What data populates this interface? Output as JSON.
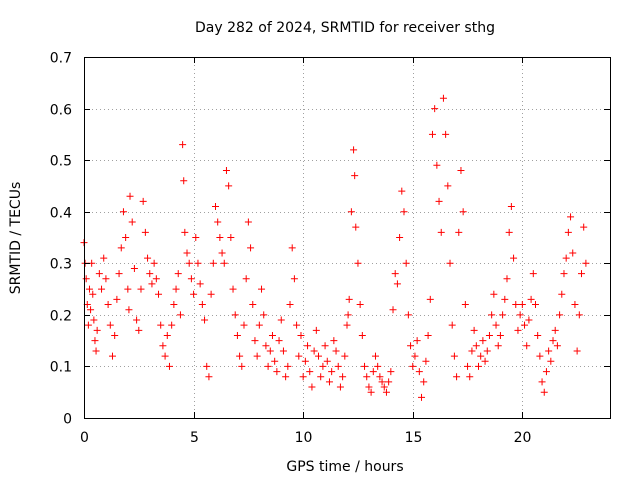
{
  "chart_data": {
    "type": "scatter",
    "title": "Day 282 of 2024, SRMTID for receiver sthg",
    "xlabel": "GPS time / hours",
    "ylabel": "SRMTID / TECUs",
    "xlim": [
      0,
      24
    ],
    "ylim": [
      0,
      0.7
    ],
    "xticks": [
      0,
      5,
      10,
      15,
      20
    ],
    "xtick_labels": [
      "0",
      "5",
      "10",
      "15",
      "20"
    ],
    "yticks": [
      0,
      0.1,
      0.2,
      0.3,
      0.4,
      0.5,
      0.6,
      0.7
    ],
    "ytick_labels": [
      "0",
      "0.1",
      "0.2",
      "0.3",
      "0.4",
      "0.5",
      "0.6",
      "0.7"
    ],
    "grid": true,
    "marker": "+",
    "series": [
      {
        "name": "SRMTID",
        "color": "#ff0000",
        "points": [
          [
            0.0,
            0.34
          ],
          [
            0.05,
            0.3
          ],
          [
            0.1,
            0.27
          ],
          [
            0.15,
            0.22
          ],
          [
            0.2,
            0.18
          ],
          [
            0.25,
            0.25
          ],
          [
            0.3,
            0.21
          ],
          [
            0.35,
            0.3
          ],
          [
            0.4,
            0.24
          ],
          [
            0.45,
            0.19
          ],
          [
            0.5,
            0.15
          ],
          [
            0.55,
            0.13
          ],
          [
            0.6,
            0.17
          ],
          [
            0.7,
            0.28
          ],
          [
            0.8,
            0.25
          ],
          [
            0.9,
            0.31
          ],
          [
            1.0,
            0.27
          ],
          [
            1.1,
            0.22
          ],
          [
            1.2,
            0.18
          ],
          [
            1.3,
            0.12
          ],
          [
            1.4,
            0.16
          ],
          [
            1.5,
            0.23
          ],
          [
            1.6,
            0.28
          ],
          [
            1.7,
            0.33
          ],
          [
            1.8,
            0.4
          ],
          [
            1.9,
            0.35
          ],
          [
            2.0,
            0.25
          ],
          [
            2.05,
            0.21
          ],
          [
            2.1,
            0.43
          ],
          [
            2.2,
            0.38
          ],
          [
            2.3,
            0.29
          ],
          [
            2.4,
            0.19
          ],
          [
            2.5,
            0.17
          ],
          [
            2.6,
            0.25
          ],
          [
            2.7,
            0.42
          ],
          [
            2.8,
            0.36
          ],
          [
            2.9,
            0.31
          ],
          [
            3.0,
            0.28
          ],
          [
            3.1,
            0.26
          ],
          [
            3.2,
            0.3
          ],
          [
            3.3,
            0.27
          ],
          [
            3.4,
            0.24
          ],
          [
            3.5,
            0.18
          ],
          [
            3.6,
            0.14
          ],
          [
            3.7,
            0.12
          ],
          [
            3.8,
            0.16
          ],
          [
            3.9,
            0.1
          ],
          [
            4.0,
            0.18
          ],
          [
            4.1,
            0.22
          ],
          [
            4.2,
            0.25
          ],
          [
            4.3,
            0.28
          ],
          [
            4.4,
            0.2
          ],
          [
            4.5,
            0.53
          ],
          [
            4.55,
            0.46
          ],
          [
            4.6,
            0.36
          ],
          [
            4.7,
            0.32
          ],
          [
            4.8,
            0.3
          ],
          [
            4.9,
            0.27
          ],
          [
            5.0,
            0.24
          ],
          [
            5.1,
            0.35
          ],
          [
            5.2,
            0.3
          ],
          [
            5.3,
            0.26
          ],
          [
            5.4,
            0.22
          ],
          [
            5.5,
            0.19
          ],
          [
            5.6,
            0.1
          ],
          [
            5.7,
            0.08
          ],
          [
            5.8,
            0.24
          ],
          [
            5.9,
            0.3
          ],
          [
            6.0,
            0.41
          ],
          [
            6.1,
            0.38
          ],
          [
            6.2,
            0.35
          ],
          [
            6.3,
            0.32
          ],
          [
            6.4,
            0.3
          ],
          [
            6.5,
            0.48
          ],
          [
            6.6,
            0.45
          ],
          [
            6.7,
            0.35
          ],
          [
            6.8,
            0.25
          ],
          [
            6.9,
            0.2
          ],
          [
            7.0,
            0.16
          ],
          [
            7.1,
            0.12
          ],
          [
            7.2,
            0.1
          ],
          [
            7.3,
            0.18
          ],
          [
            7.4,
            0.27
          ],
          [
            7.5,
            0.38
          ],
          [
            7.6,
            0.33
          ],
          [
            7.7,
            0.22
          ],
          [
            7.8,
            0.15
          ],
          [
            7.9,
            0.12
          ],
          [
            8.0,
            0.18
          ],
          [
            8.1,
            0.25
          ],
          [
            8.2,
            0.2
          ],
          [
            8.3,
            0.14
          ],
          [
            8.4,
            0.1
          ],
          [
            8.5,
            0.13
          ],
          [
            8.6,
            0.16
          ],
          [
            8.7,
            0.11
          ],
          [
            8.8,
            0.09
          ],
          [
            8.9,
            0.15
          ],
          [
            9.0,
            0.19
          ],
          [
            9.1,
            0.13
          ],
          [
            9.2,
            0.08
          ],
          [
            9.3,
            0.1
          ],
          [
            9.4,
            0.22
          ],
          [
            9.5,
            0.33
          ],
          [
            9.6,
            0.27
          ],
          [
            9.7,
            0.18
          ],
          [
            9.8,
            0.12
          ],
          [
            9.9,
            0.16
          ],
          [
            10.0,
            0.08
          ],
          [
            10.1,
            0.11
          ],
          [
            10.2,
            0.14
          ],
          [
            10.3,
            0.09
          ],
          [
            10.4,
            0.06
          ],
          [
            10.5,
            0.13
          ],
          [
            10.6,
            0.17
          ],
          [
            10.7,
            0.12
          ],
          [
            10.8,
            0.08
          ],
          [
            10.9,
            0.1
          ],
          [
            11.0,
            0.14
          ],
          [
            11.1,
            0.11
          ],
          [
            11.2,
            0.07
          ],
          [
            11.3,
            0.09
          ],
          [
            11.4,
            0.15
          ],
          [
            11.5,
            0.13
          ],
          [
            11.6,
            0.1
          ],
          [
            11.7,
            0.06
          ],
          [
            11.8,
            0.08
          ],
          [
            11.9,
            0.12
          ],
          [
            12.0,
            0.18
          ],
          [
            12.05,
            0.2
          ],
          [
            12.1,
            0.23
          ],
          [
            12.2,
            0.4
          ],
          [
            12.3,
            0.52
          ],
          [
            12.35,
            0.47
          ],
          [
            12.4,
            0.37
          ],
          [
            12.5,
            0.3
          ],
          [
            12.6,
            0.22
          ],
          [
            12.7,
            0.16
          ],
          [
            12.8,
            0.1
          ],
          [
            12.9,
            0.08
          ],
          [
            13.0,
            0.06
          ],
          [
            13.1,
            0.05
          ],
          [
            13.2,
            0.09
          ],
          [
            13.3,
            0.12
          ],
          [
            13.4,
            0.1
          ],
          [
            13.5,
            0.08
          ],
          [
            13.6,
            0.07
          ],
          [
            13.7,
            0.06
          ],
          [
            13.8,
            0.05
          ],
          [
            13.9,
            0.07
          ],
          [
            14.0,
            0.09
          ],
          [
            14.1,
            0.21
          ],
          [
            14.2,
            0.28
          ],
          [
            14.3,
            0.26
          ],
          [
            14.4,
            0.35
          ],
          [
            14.5,
            0.44
          ],
          [
            14.6,
            0.4
          ],
          [
            14.7,
            0.3
          ],
          [
            14.8,
            0.2
          ],
          [
            14.9,
            0.14
          ],
          [
            15.0,
            0.1
          ],
          [
            15.1,
            0.12
          ],
          [
            15.2,
            0.15
          ],
          [
            15.3,
            0.09
          ],
          [
            15.4,
            0.04
          ],
          [
            15.5,
            0.07
          ],
          [
            15.6,
            0.11
          ],
          [
            15.7,
            0.16
          ],
          [
            15.8,
            0.23
          ],
          [
            15.9,
            0.55
          ],
          [
            16.0,
            0.6
          ],
          [
            16.1,
            0.49
          ],
          [
            16.2,
            0.42
          ],
          [
            16.3,
            0.36
          ],
          [
            16.4,
            0.62
          ],
          [
            16.5,
            0.55
          ],
          [
            16.6,
            0.45
          ],
          [
            16.7,
            0.3
          ],
          [
            16.8,
            0.18
          ],
          [
            16.9,
            0.12
          ],
          [
            17.0,
            0.08
          ],
          [
            17.1,
            0.36
          ],
          [
            17.2,
            0.48
          ],
          [
            17.3,
            0.4
          ],
          [
            17.4,
            0.22
          ],
          [
            17.5,
            0.1
          ],
          [
            17.6,
            0.08
          ],
          [
            17.7,
            0.13
          ],
          [
            17.8,
            0.17
          ],
          [
            17.9,
            0.14
          ],
          [
            18.0,
            0.1
          ],
          [
            18.1,
            0.12
          ],
          [
            18.2,
            0.15
          ],
          [
            18.3,
            0.11
          ],
          [
            18.4,
            0.13
          ],
          [
            18.5,
            0.16
          ],
          [
            18.6,
            0.2
          ],
          [
            18.7,
            0.24
          ],
          [
            18.8,
            0.18
          ],
          [
            18.9,
            0.14
          ],
          [
            19.0,
            0.16
          ],
          [
            19.1,
            0.2
          ],
          [
            19.2,
            0.23
          ],
          [
            19.3,
            0.27
          ],
          [
            19.4,
            0.36
          ],
          [
            19.5,
            0.41
          ],
          [
            19.6,
            0.31
          ],
          [
            19.7,
            0.22
          ],
          [
            19.8,
            0.17
          ],
          [
            19.9,
            0.2
          ],
          [
            20.0,
            0.22
          ],
          [
            20.1,
            0.18
          ],
          [
            20.2,
            0.14
          ],
          [
            20.3,
            0.19
          ],
          [
            20.4,
            0.23
          ],
          [
            20.5,
            0.28
          ],
          [
            20.6,
            0.22
          ],
          [
            20.7,
            0.16
          ],
          [
            20.8,
            0.12
          ],
          [
            20.9,
            0.07
          ],
          [
            21.0,
            0.05
          ],
          [
            21.1,
            0.09
          ],
          [
            21.2,
            0.13
          ],
          [
            21.3,
            0.11
          ],
          [
            21.4,
            0.15
          ],
          [
            21.5,
            0.17
          ],
          [
            21.6,
            0.14
          ],
          [
            21.7,
            0.2
          ],
          [
            21.8,
            0.24
          ],
          [
            21.9,
            0.28
          ],
          [
            22.0,
            0.31
          ],
          [
            22.1,
            0.36
          ],
          [
            22.2,
            0.39
          ],
          [
            22.3,
            0.32
          ],
          [
            22.4,
            0.22
          ],
          [
            22.5,
            0.13
          ],
          [
            22.6,
            0.2
          ],
          [
            22.7,
            0.28
          ],
          [
            22.8,
            0.37
          ],
          [
            22.9,
            0.3
          ]
        ]
      }
    ]
  }
}
